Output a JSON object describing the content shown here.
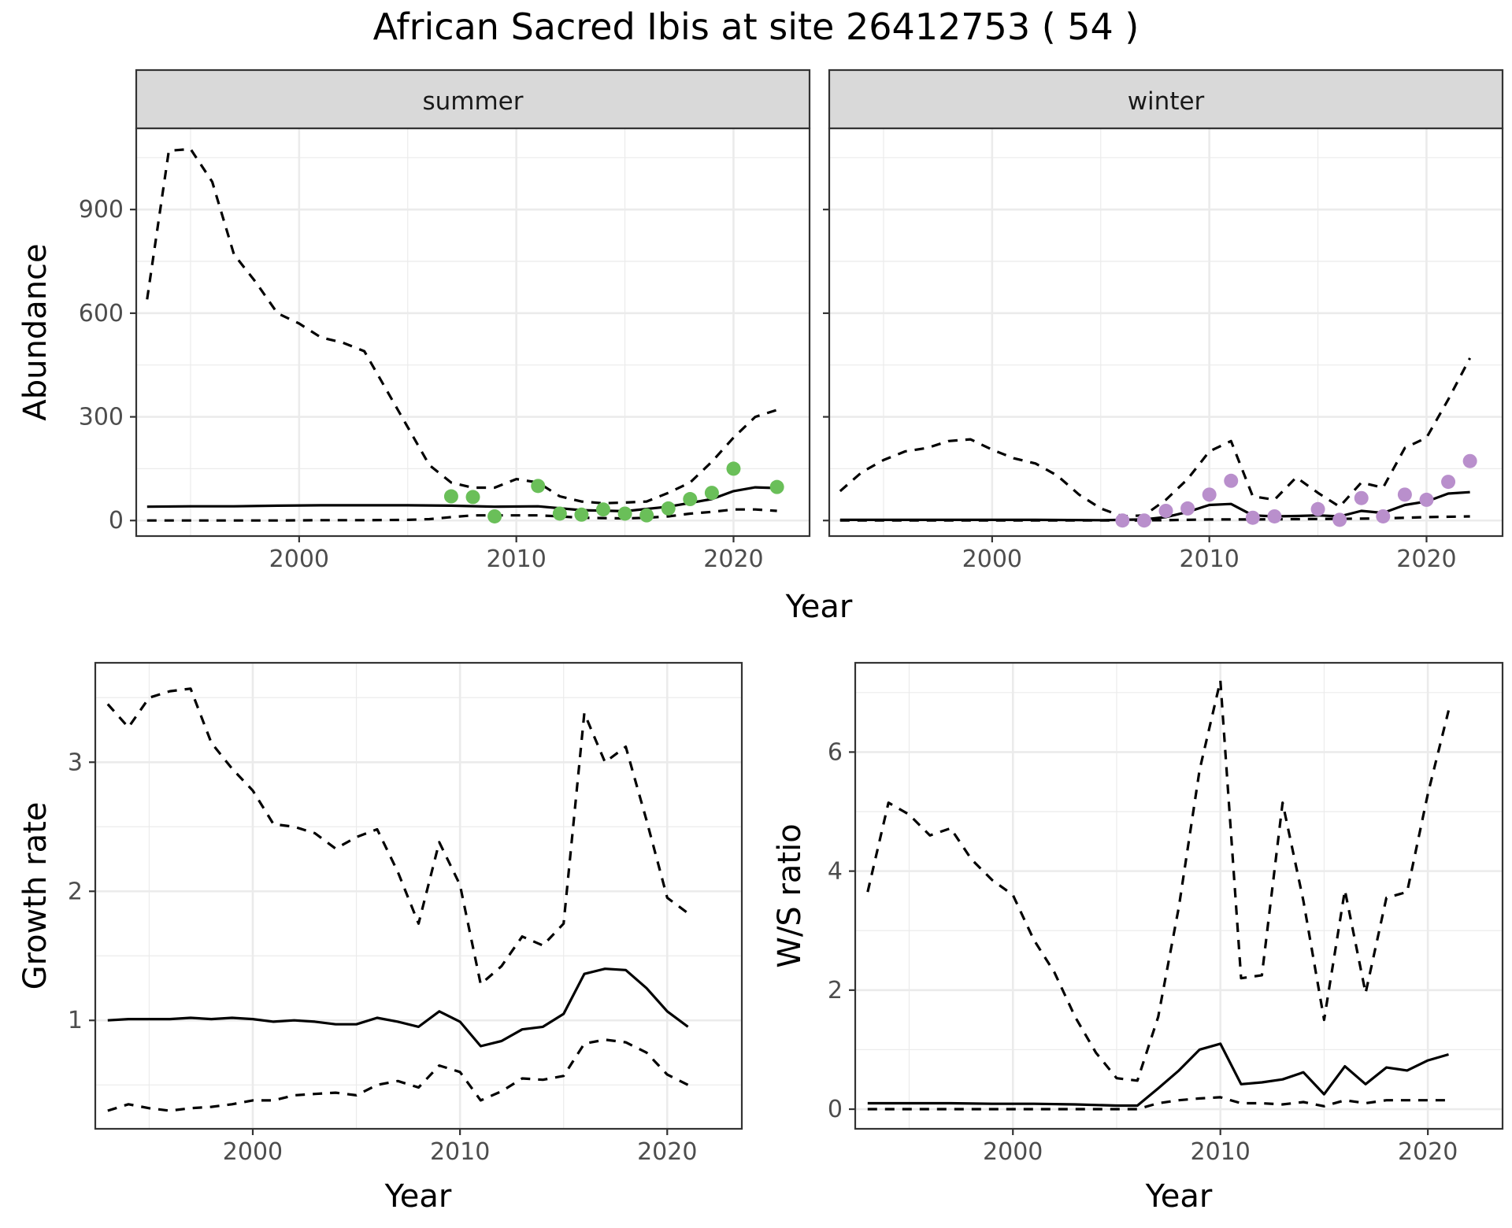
{
  "title": "African Sacred Ibis at site 26412753 ( 54 )",
  "colors": {
    "summer_points": "#6abf59",
    "winter_points": "#b98fcc",
    "line": "#000000",
    "grid": "#ebebeb",
    "strip_bg": "#d9d9d9"
  },
  "chart_data": [
    {
      "type": "line",
      "panel": "summer",
      "strip_label": "summer",
      "xlabel": "Year",
      "ylabel": "Abundance",
      "xlim": [
        1992.5,
        2023.5
      ],
      "ylim": [
        -45,
        1135
      ],
      "xticks": [
        2000,
        2010,
        2020
      ],
      "yticks": [
        0,
        300,
        600,
        900
      ],
      "grid": true,
      "series": [
        {
          "role": "estimate",
          "style": "solid",
          "x": [
            1993,
            1995,
            1997,
            1999,
            2001,
            2003,
            2005,
            2007,
            2009,
            2011,
            2013,
            2015,
            2017,
            2019,
            2020,
            2021,
            2022
          ],
          "y": [
            40,
            41,
            41,
            43,
            44,
            44,
            44,
            43,
            40,
            41,
            30,
            27,
            40,
            62,
            85,
            96,
            94
          ]
        },
        {
          "role": "upper",
          "style": "dashed",
          "x": [
            1993,
            1994,
            1995,
            1996,
            1997,
            1998,
            1999,
            2000,
            2001,
            2002,
            2003,
            2004,
            2005,
            2006,
            2007,
            2008,
            2009,
            2010,
            2011,
            2012,
            2013,
            2014,
            2015,
            2016,
            2017,
            2018,
            2019,
            2020,
            2021,
            2022
          ],
          "y": [
            640,
            1070,
            1075,
            980,
            770,
            690,
            600,
            570,
            530,
            515,
            490,
            380,
            270,
            160,
            110,
            95,
            95,
            120,
            110,
            70,
            55,
            50,
            52,
            55,
            80,
            110,
            170,
            240,
            300,
            320
          ]
        },
        {
          "role": "lower",
          "style": "dashed",
          "x": [
            1993,
            1995,
            1997,
            1999,
            2001,
            2003,
            2005,
            2006,
            2007,
            2008,
            2009,
            2010,
            2011,
            2012,
            2013,
            2014,
            2015,
            2016,
            2017,
            2018,
            2019,
            2020,
            2021,
            2022
          ],
          "y": [
            0,
            0,
            0,
            0,
            1,
            1,
            2,
            4,
            10,
            15,
            15,
            15,
            15,
            12,
            8,
            7,
            6,
            8,
            12,
            20,
            25,
            32,
            32,
            28
          ]
        },
        {
          "role": "counts",
          "style": "points",
          "x": [
            2007,
            2008,
            2009,
            2011,
            2012,
            2013,
            2014,
            2015,
            2016,
            2017,
            2018,
            2019,
            2020,
            2022
          ],
          "y": [
            70,
            68,
            12,
            100,
            20,
            17,
            32,
            20,
            15,
            35,
            62,
            80,
            150,
            97
          ]
        }
      ]
    },
    {
      "type": "line",
      "panel": "winter",
      "strip_label": "winter",
      "xlabel": "Year",
      "ylabel": "Abundance",
      "xlim": [
        1992.5,
        2023.5
      ],
      "ylim": [
        -45,
        1135
      ],
      "xticks": [
        2000,
        2010,
        2020
      ],
      "yticks": [
        0,
        300,
        600,
        900
      ],
      "grid": true,
      "series": [
        {
          "role": "estimate",
          "style": "solid",
          "x": [
            1993,
            1996,
            1999,
            2002,
            2005,
            2006,
            2007,
            2008,
            2009,
            2010,
            2011,
            2012,
            2013,
            2014,
            2015,
            2016,
            2017,
            2018,
            2019,
            2020,
            2021,
            2022
          ],
          "y": [
            2,
            2,
            2,
            2,
            1,
            2,
            3,
            10,
            25,
            45,
            48,
            15,
            12,
            13,
            15,
            12,
            28,
            22,
            45,
            55,
            78,
            82
          ]
        },
        {
          "role": "upper",
          "style": "dashed",
          "x": [
            1993,
            1994,
            1995,
            1996,
            1997,
            1998,
            1999,
            2000,
            2001,
            2002,
            2003,
            2004,
            2005,
            2006,
            2007,
            2008,
            2009,
            2010,
            2011,
            2011.5,
            2012,
            2013,
            2014,
            2015,
            2016,
            2017,
            2018,
            2019,
            2020,
            2021,
            2022
          ],
          "y": [
            85,
            140,
            175,
            200,
            210,
            230,
            235,
            205,
            180,
            165,
            130,
            75,
            35,
            12,
            15,
            60,
            120,
            200,
            230,
            150,
            70,
            60,
            125,
            80,
            40,
            110,
            95,
            210,
            240,
            350,
            470
          ]
        },
        {
          "role": "lower",
          "style": "dashed",
          "x": [
            1993,
            1996,
            1999,
            2002,
            2005,
            2006,
            2008,
            2010,
            2012,
            2014,
            2016,
            2018,
            2020,
            2022
          ],
          "y": [
            0,
            0,
            0,
            0,
            0,
            0,
            1,
            3,
            3,
            4,
            5,
            6,
            10,
            12
          ]
        },
        {
          "role": "counts",
          "style": "points",
          "x": [
            2006,
            2007,
            2008,
            2009,
            2010,
            2011,
            2012,
            2013,
            2015,
            2016,
            2017,
            2018,
            2019,
            2020,
            2021,
            2022
          ],
          "y": [
            0,
            0,
            28,
            35,
            75,
            115,
            8,
            12,
            33,
            2,
            65,
            12,
            75,
            60,
            112,
            172
          ]
        }
      ]
    },
    {
      "type": "line",
      "panel": "growth",
      "xlabel": "Year",
      "ylabel": "Growth rate",
      "xlim": [
        1992.4,
        2023.6
      ],
      "ylim": [
        0.16,
        3.77
      ],
      "xticks": [
        2000,
        2010,
        2020
      ],
      "yticks": [
        1,
        2,
        3
      ],
      "grid": true,
      "series": [
        {
          "role": "estimate",
          "style": "solid",
          "x": [
            1993,
            1994,
            1995,
            1996,
            1997,
            1998,
            1999,
            2000,
            2001,
            2002,
            2003,
            2004,
            2005,
            2006,
            2007,
            2008,
            2009,
            2010,
            2011,
            2012,
            2013,
            2014,
            2015,
            2016,
            2017,
            2018,
            2019,
            2020,
            2021
          ],
          "y": [
            1.0,
            1.01,
            1.01,
            1.01,
            1.02,
            1.01,
            1.02,
            1.01,
            0.99,
            1.0,
            0.99,
            0.97,
            0.97,
            1.02,
            0.99,
            0.95,
            1.07,
            0.99,
            0.8,
            0.84,
            0.93,
            0.95,
            1.05,
            1.36,
            1.4,
            1.39,
            1.25,
            1.07,
            0.95
          ]
        },
        {
          "role": "upper",
          "style": "dashed",
          "x": [
            1993,
            1994,
            1995,
            1996,
            1997,
            1998,
            1999,
            2000,
            2001,
            2002,
            2003,
            2004,
            2005,
            2006,
            2007,
            2008,
            2009,
            2010,
            2011,
            2012,
            2013,
            2014,
            2015,
            2016,
            2017,
            2018,
            2019,
            2020,
            2021
          ],
          "y": [
            3.45,
            3.27,
            3.5,
            3.55,
            3.57,
            3.15,
            2.95,
            2.78,
            2.52,
            2.5,
            2.45,
            2.33,
            2.42,
            2.48,
            2.15,
            1.75,
            2.38,
            2.05,
            1.28,
            1.42,
            1.65,
            1.58,
            1.75,
            3.38,
            3.0,
            3.12,
            2.55,
            1.95,
            1.83
          ]
        },
        {
          "role": "lower",
          "style": "dashed",
          "x": [
            1993,
            1994,
            1995,
            1996,
            1997,
            1998,
            1999,
            2000,
            2001,
            2002,
            2003,
            2004,
            2005,
            2006,
            2007,
            2008,
            2009,
            2010,
            2011,
            2012,
            2013,
            2014,
            2015,
            2016,
            2017,
            2018,
            2019,
            2020,
            2021
          ],
          "y": [
            0.3,
            0.35,
            0.32,
            0.3,
            0.32,
            0.33,
            0.35,
            0.38,
            0.38,
            0.42,
            0.43,
            0.44,
            0.42,
            0.5,
            0.53,
            0.48,
            0.65,
            0.6,
            0.38,
            0.45,
            0.55,
            0.54,
            0.57,
            0.82,
            0.85,
            0.83,
            0.75,
            0.58,
            0.5
          ]
        }
      ]
    },
    {
      "type": "line",
      "panel": "ratio",
      "xlabel": "Year",
      "ylabel": "W/S ratio",
      "xlim": [
        1992.4,
        2023.6
      ],
      "ylim": [
        -0.33,
        7.5
      ],
      "xticks": [
        2000,
        2010,
        2020
      ],
      "yticks": [
        0,
        2,
        4,
        6
      ],
      "grid": true,
      "series": [
        {
          "role": "estimate",
          "style": "solid",
          "x": [
            1993,
            1995,
            1997,
            1999,
            2001,
            2003,
            2005,
            2006,
            2007,
            2008,
            2009,
            2010,
            2011,
            2012,
            2013,
            2014,
            2015,
            2016,
            2017,
            2018,
            2019,
            2020,
            2021
          ],
          "y": [
            0.1,
            0.1,
            0.1,
            0.09,
            0.09,
            0.08,
            0.06,
            0.06,
            0.35,
            0.65,
            1.0,
            1.1,
            0.42,
            0.45,
            0.5,
            0.62,
            0.25,
            0.72,
            0.42,
            0.7,
            0.65,
            0.82,
            0.92
          ]
        },
        {
          "role": "upper",
          "style": "dashed",
          "x": [
            1993,
            1994,
            1995,
            1996,
            1997,
            1998,
            1999,
            2000,
            2001,
            2002,
            2003,
            2004,
            2005,
            2006,
            2007,
            2008,
            2009,
            2010,
            2011,
            2012,
            2013,
            2014,
            2015,
            2016,
            2017,
            2018,
            2019,
            2020,
            2021
          ],
          "y": [
            3.65,
            5.15,
            4.95,
            4.6,
            4.72,
            4.2,
            3.85,
            3.6,
            2.85,
            2.3,
            1.55,
            0.95,
            0.52,
            0.48,
            1.55,
            3.4,
            5.7,
            7.2,
            2.2,
            2.25,
            5.15,
            3.5,
            1.5,
            3.68,
            1.95,
            3.55,
            3.65,
            5.3,
            6.7
          ]
        },
        {
          "role": "lower",
          "style": "dashed",
          "x": [
            1993,
            1995,
            1997,
            1999,
            2001,
            2003,
            2005,
            2006,
            2007,
            2008,
            2009,
            2010,
            2011,
            2012,
            2013,
            2014,
            2015,
            2016,
            2017,
            2018,
            2019,
            2020,
            2021
          ],
          "y": [
            0.0,
            0.0,
            0.0,
            0.0,
            0.0,
            0.0,
            0.0,
            0.0,
            0.1,
            0.15,
            0.18,
            0.2,
            0.1,
            0.1,
            0.08,
            0.12,
            0.05,
            0.15,
            0.1,
            0.15,
            0.15,
            0.15,
            0.15
          ]
        }
      ]
    }
  ]
}
